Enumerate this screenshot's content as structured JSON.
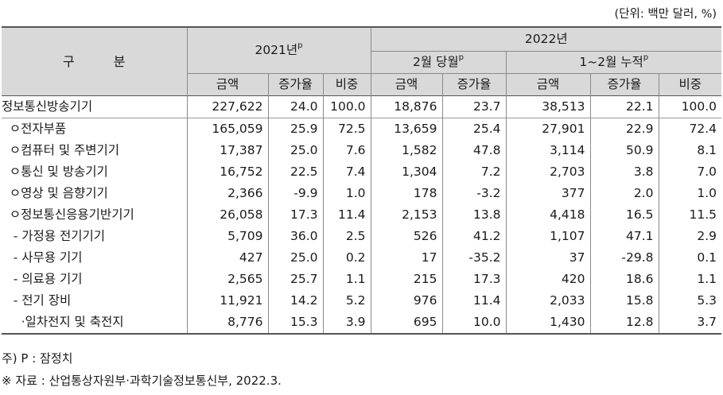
{
  "unit_note": "(단위: 백만 달러, %)",
  "header": {
    "gubun": "구 분",
    "y2021": "2021년",
    "y2022": "2022년",
    "sup_p": "p",
    "feb": "2월 당월",
    "cum": "1~2월 누적",
    "amount": "금액",
    "growth": "증가율",
    "share": "비중"
  },
  "rows": [
    {
      "label": "정보통신방송기기",
      "a21": "227,622",
      "g21": "24.0",
      "s21": "100.0",
      "afeb": "18,876",
      "gfeb": "23.7",
      "acum": "38,513",
      "gcum": "22.1",
      "scum": "100.0"
    },
    {
      "label": "  ㅇ전자부품",
      "a21": "165,059",
      "g21": "25.9",
      "s21": "72.5",
      "afeb": "13,659",
      "gfeb": "25.4",
      "acum": "27,901",
      "gcum": "22.9",
      "scum": "72.4"
    },
    {
      "label": "  ㅇ컴퓨터 및 주변기기",
      "a21": "17,387",
      "g21": "25.0",
      "s21": "7.6",
      "afeb": "1,582",
      "gfeb": "47.8",
      "acum": "3,114",
      "gcum": "50.9",
      "scum": "8.1"
    },
    {
      "label": "  ㅇ통신 및 방송기기",
      "a21": "16,752",
      "g21": "22.5",
      "s21": "7.4",
      "afeb": "1,304",
      "gfeb": "7.2",
      "acum": "2,703",
      "gcum": "3.8",
      "scum": "7.0"
    },
    {
      "label": "  ㅇ영상 및 음향기기",
      "a21": "2,366",
      "g21": "-9.9",
      "s21": "1.0",
      "afeb": "178",
      "gfeb": "-3.2",
      "acum": "377",
      "gcum": "2.0",
      "scum": "1.0"
    },
    {
      "label": "  ㅇ정보통신응용기반기기",
      "a21": "26,058",
      "g21": "17.3",
      "s21": "11.4",
      "afeb": "2,153",
      "gfeb": "13.8",
      "acum": "4,418",
      "gcum": "16.5",
      "scum": "11.5"
    },
    {
      "label": "   - 가정용 전기기기",
      "a21": "5,709",
      "g21": "36.0",
      "s21": "2.5",
      "afeb": "526",
      "gfeb": "41.2",
      "acum": "1,107",
      "gcum": "47.1",
      "scum": "2.9"
    },
    {
      "label": "   - 사무용 기기",
      "a21": "427",
      "g21": "25.0",
      "s21": "0.2",
      "afeb": "17",
      "gfeb": "-35.2",
      "acum": "37",
      "gcum": "-29.8",
      "scum": "0.1"
    },
    {
      "label": "   - 의료용 기기",
      "a21": "2,565",
      "g21": "25.7",
      "s21": "1.1",
      "afeb": "215",
      "gfeb": "17.3",
      "acum": "420",
      "gcum": "18.6",
      "scum": "1.1"
    },
    {
      "label": "   - 전기 장비",
      "a21": "11,921",
      "g21": "14.2",
      "s21": "5.2",
      "afeb": "976",
      "gfeb": "11.4",
      "acum": "2,033",
      "gcum": "15.8",
      "scum": "5.3"
    },
    {
      "label": "     ·일차전지 및 축전지",
      "a21": "8,776",
      "g21": "15.3",
      "s21": "3.9",
      "afeb": "695",
      "gfeb": "10.0",
      "acum": "1,430",
      "gcum": "12.8",
      "scum": "3.7"
    }
  ],
  "footnote": "주) P : 잠정치",
  "source": "※ 자료 : 산업통상자원부·과학기술정보통신부, 2022.3."
}
